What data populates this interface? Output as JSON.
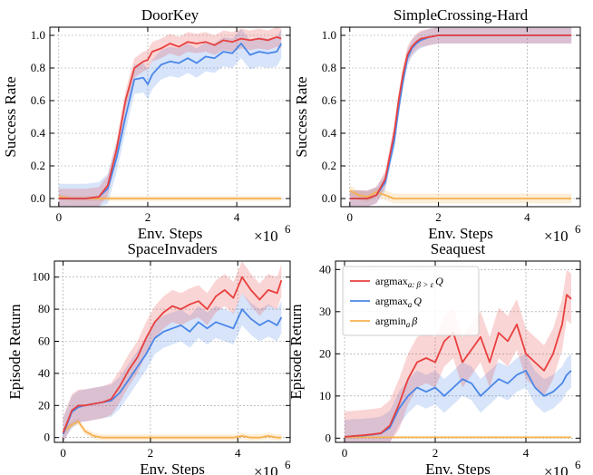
{
  "colors": {
    "red": "#e8403f",
    "blue": "#4a86e8",
    "orange": "#f7b04e"
  },
  "legend": {
    "items": [
      {
        "series": "red",
        "main": "argmax",
        "sub": "a: β > ε",
        "tail": "Q"
      },
      {
        "series": "blue",
        "main": "argmax",
        "sub": "a",
        "tail": "Q"
      },
      {
        "series": "orange",
        "main": "argmin",
        "sub": "a",
        "tail": "β"
      }
    ]
  },
  "chart_data": [
    {
      "type": "line",
      "title": "DoorKey",
      "xlabel": "Env. Steps",
      "ylabel": "Success Rate",
      "x_multiplier": "×10",
      "x_multiplier_exp": "6",
      "xlim": [
        -0.2,
        5.2
      ],
      "ylim": [
        -0.05,
        1.05
      ],
      "xticks": [
        0,
        2,
        4
      ],
      "yticks": [
        0.0,
        0.2,
        0.4,
        0.6,
        0.8,
        1.0
      ],
      "ytick_labels": [
        "0.0",
        "0.2",
        "0.4",
        "0.6",
        "0.8",
        "1.0"
      ],
      "grid": true,
      "x": [
        0,
        0.3,
        0.6,
        0.9,
        1.1,
        1.3,
        1.5,
        1.7,
        1.9,
        2.0,
        2.1,
        2.3,
        2.5,
        2.7,
        2.9,
        3.1,
        3.3,
        3.5,
        3.7,
        3.9,
        4.1,
        4.3,
        4.5,
        4.7,
        4.9,
        5.0
      ],
      "series": [
        {
          "color": "red",
          "values": [
            0.0,
            0.0,
            0.0,
            0.01,
            0.08,
            0.3,
            0.6,
            0.8,
            0.84,
            0.85,
            0.9,
            0.92,
            0.95,
            0.93,
            0.96,
            0.95,
            0.96,
            0.94,
            0.97,
            0.96,
            0.98,
            0.97,
            0.98,
            0.97,
            0.99,
            0.98
          ],
          "band": 0.06
        },
        {
          "color": "blue",
          "values": [
            0.0,
            0.0,
            0.0,
            0.01,
            0.06,
            0.25,
            0.5,
            0.73,
            0.74,
            0.7,
            0.76,
            0.82,
            0.84,
            0.83,
            0.86,
            0.83,
            0.87,
            0.86,
            0.9,
            0.89,
            0.95,
            0.88,
            0.9,
            0.89,
            0.9,
            0.95
          ],
          "band": 0.09
        },
        {
          "color": "orange",
          "values": [
            0.01,
            0.0,
            0.0,
            0.0,
            0.0,
            0.0,
            0.0,
            0.0,
            0.0,
            0.0,
            0.0,
            0.0,
            0.0,
            0.0,
            0.0,
            0.0,
            0.0,
            0.0,
            0.0,
            0.0,
            0.0,
            0.0,
            0.0,
            0.0,
            0.0,
            0.0
          ],
          "band": 0.015
        }
      ]
    },
    {
      "type": "line",
      "title": "SimpleCrossing-Hard",
      "xlabel": "Env. Steps",
      "ylabel": "Success Rate",
      "x_multiplier": "×10",
      "x_multiplier_exp": "6",
      "xlim": [
        -0.2,
        5.2
      ],
      "ylim": [
        -0.05,
        1.05
      ],
      "xticks": [
        0,
        2,
        4
      ],
      "yticks": [
        0.0,
        0.2,
        0.4,
        0.6,
        0.8,
        1.0
      ],
      "ytick_labels": [
        "0.0",
        "0.2",
        "0.4",
        "0.6",
        "0.8",
        "1.0"
      ],
      "grid": true,
      "x": [
        0,
        0.2,
        0.4,
        0.6,
        0.8,
        1.0,
        1.1,
        1.2,
        1.3,
        1.4,
        1.5,
        1.6,
        1.8,
        2.0,
        2.5,
        3.0,
        3.5,
        4.0,
        4.5,
        5.0
      ],
      "series": [
        {
          "color": "red",
          "values": [
            0.0,
            0.0,
            0.0,
            0.02,
            0.12,
            0.4,
            0.6,
            0.76,
            0.88,
            0.93,
            0.96,
            0.98,
            0.99,
            1.0,
            1.0,
            1.0,
            1.0,
            1.0,
            1.0,
            1.0
          ],
          "band": 0.05
        },
        {
          "color": "blue",
          "values": [
            0.0,
            0.0,
            0.0,
            0.02,
            0.1,
            0.35,
            0.55,
            0.72,
            0.86,
            0.92,
            0.95,
            0.97,
            0.99,
            1.0,
            1.0,
            1.0,
            1.0,
            1.0,
            1.0,
            1.0
          ],
          "band": 0.05
        },
        {
          "color": "orange",
          "values": [
            0.05,
            0.02,
            0.01,
            0.04,
            0.02,
            0.0,
            0.0,
            0.0,
            0.0,
            0.0,
            0.0,
            0.0,
            0.0,
            0.0,
            0.0,
            0.0,
            0.0,
            0.0,
            0.0,
            0.0
          ],
          "band": 0.03
        }
      ]
    },
    {
      "type": "line",
      "title": "SpaceInvaders",
      "xlabel": "Env. Steps",
      "ylabel": "Episode Return",
      "x_multiplier": "×10",
      "x_multiplier_exp": "6",
      "xlim": [
        -0.2,
        5.2
      ],
      "ylim": [
        -3,
        110
      ],
      "xticks": [
        0,
        2,
        4
      ],
      "yticks": [
        0,
        20,
        40,
        60,
        80,
        100
      ],
      "ytick_labels": [
        "0",
        "20",
        "40",
        "60",
        "80",
        "100"
      ],
      "grid": true,
      "x": [
        0,
        0.2,
        0.35,
        0.5,
        0.7,
        0.9,
        1.1,
        1.3,
        1.5,
        1.7,
        1.9,
        2.1,
        2.3,
        2.5,
        2.7,
        2.9,
        3.1,
        3.3,
        3.5,
        3.7,
        3.9,
        4.1,
        4.3,
        4.5,
        4.7,
        4.9,
        5.0
      ],
      "series": [
        {
          "color": "red",
          "values": [
            3,
            17,
            20,
            20,
            21,
            22,
            24,
            32,
            42,
            50,
            62,
            72,
            78,
            82,
            80,
            83,
            85,
            80,
            88,
            92,
            87,
            100,
            92,
            86,
            92,
            90,
            98
          ],
          "band": 10
        },
        {
          "color": "blue",
          "values": [
            2,
            16,
            19,
            20,
            21,
            22,
            23,
            28,
            36,
            44,
            52,
            62,
            66,
            68,
            70,
            66,
            72,
            68,
            72,
            70,
            68,
            80,
            74,
            70,
            73,
            70,
            75
          ],
          "band": 10
        },
        {
          "color": "orange",
          "values": [
            4,
            8,
            10,
            4,
            1,
            0,
            0,
            0,
            0,
            0,
            0,
            0,
            0,
            0,
            0,
            0,
            0,
            0,
            0,
            0,
            0,
            1,
            0,
            0,
            1,
            0,
            0
          ],
          "band": 2
        }
      ]
    },
    {
      "type": "line",
      "title": "Seaquest",
      "xlabel": "Env. Steps",
      "ylabel": "Episode Return",
      "x_multiplier": "×10",
      "x_multiplier_exp": "6",
      "xlim": [
        -0.2,
        5.2
      ],
      "ylim": [
        -1,
        42
      ],
      "xticks": [
        0,
        2,
        4
      ],
      "yticks": [
        0,
        10,
        20,
        30,
        40
      ],
      "ytick_labels": [
        "0",
        "10",
        "20",
        "30",
        "40"
      ],
      "grid": true,
      "legend_position": "upper-left",
      "x": [
        0,
        0.2,
        0.4,
        0.6,
        0.8,
        1.0,
        1.2,
        1.4,
        1.6,
        1.8,
        2.0,
        2.2,
        2.4,
        2.6,
        2.8,
        3.0,
        3.2,
        3.4,
        3.6,
        3.8,
        4.0,
        4.2,
        4.4,
        4.6,
        4.8,
        4.9,
        5.0
      ],
      "series": [
        {
          "color": "red",
          "values": [
            0.3,
            0.5,
            0.7,
            0.9,
            1.2,
            3,
            8,
            14,
            18,
            19,
            18,
            23,
            25,
            18,
            21,
            24,
            18,
            25,
            23,
            27,
            20,
            18,
            16,
            20,
            27,
            34,
            33
          ],
          "band": 6
        },
        {
          "color": "blue",
          "values": [
            0.3,
            0.5,
            0.6,
            0.8,
            1.1,
            2.5,
            7,
            10,
            12,
            11,
            12,
            10,
            12,
            14,
            13,
            10,
            12,
            14,
            13,
            15,
            16,
            12,
            10,
            11,
            13,
            15,
            16
          ],
          "band": 4
        },
        {
          "color": "orange",
          "values": [
            0.2,
            0.2,
            0.2,
            0.2,
            0.2,
            0.2,
            0.2,
            0.2,
            0.2,
            0.2,
            0.2,
            0.2,
            0.2,
            0.2,
            0.2,
            0.2,
            0.2,
            0.2,
            0.2,
            0.2,
            0.2,
            0.2,
            0.2,
            0.2,
            0.2,
            0.2,
            0.2
          ],
          "band": 0.2
        }
      ]
    }
  ]
}
